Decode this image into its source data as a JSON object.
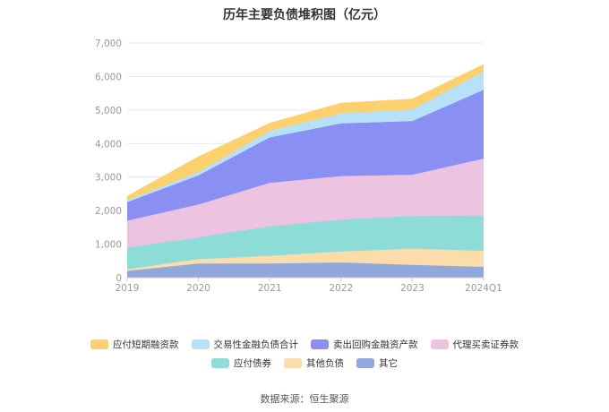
{
  "source": "数据来源：恒生聚源",
  "chart_data": {
    "type": "area",
    "stacked": true,
    "title": "历年主要负债堆积图（亿元）",
    "x": [
      "2019",
      "2020",
      "2021",
      "2022",
      "2023",
      "2024Q1"
    ],
    "y_ticks": [
      "0",
      "1,000",
      "2,000",
      "3,000",
      "4,000",
      "5,000",
      "6,000",
      "7,000"
    ],
    "ylim": [
      0,
      7000
    ],
    "grid": true,
    "legend_position": "bottom",
    "series": [
      {
        "name": "其它",
        "color": "#91a8dd",
        "values": [
          200,
          420,
          420,
          450,
          380,
          320
        ]
      },
      {
        "name": "其他负债",
        "color": "#fbdcaa",
        "values": [
          50,
          130,
          230,
          330,
          480,
          480
        ]
      },
      {
        "name": "应付债券",
        "color": "#8edcd8",
        "values": [
          650,
          650,
          880,
          950,
          980,
          1050
        ]
      },
      {
        "name": "代理买卖证券款",
        "color": "#edc3e2",
        "values": [
          800,
          980,
          1300,
          1300,
          1230,
          1700
        ]
      },
      {
        "name": "卖出回购金融资产款",
        "color": "#8a8ff4",
        "values": [
          550,
          870,
          1350,
          1570,
          1600,
          2050
        ]
      },
      {
        "name": "交易性金融负债合计",
        "color": "#b6e1f7",
        "values": [
          50,
          100,
          200,
          300,
          350,
          550
        ]
      },
      {
        "name": "应付短期融资款",
        "color": "#fcd06d",
        "values": [
          120,
          450,
          220,
          300,
          300,
          200
        ]
      }
    ]
  }
}
